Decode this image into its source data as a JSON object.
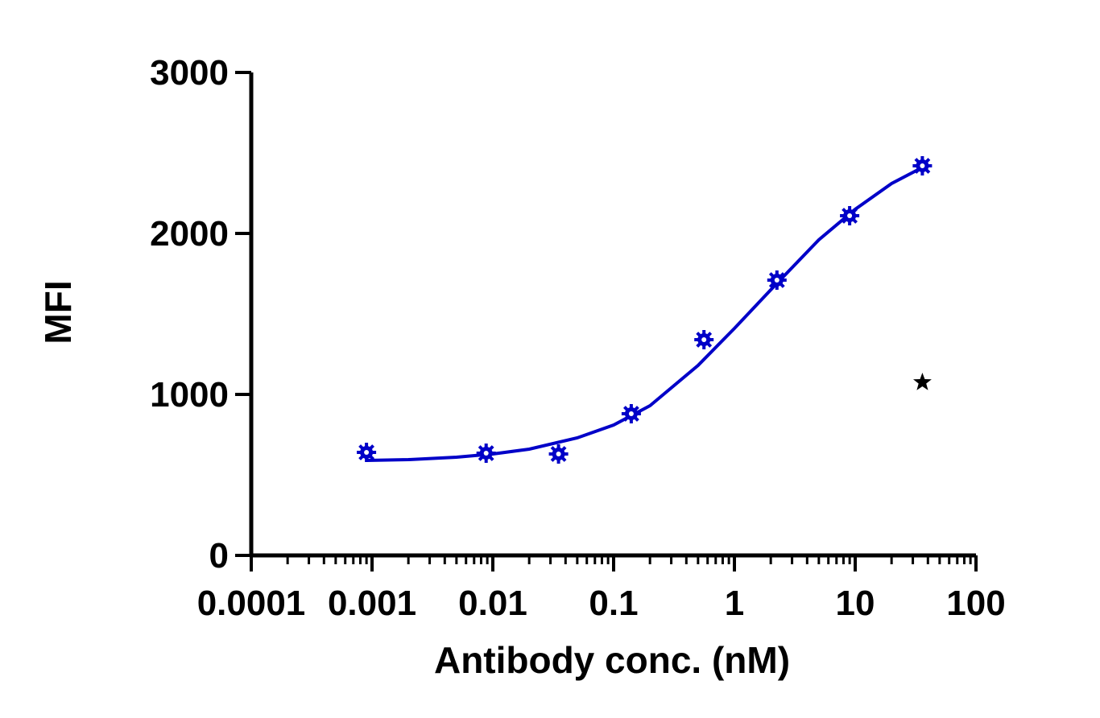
{
  "chart_data": {
    "type": "scatter",
    "title": "",
    "xlabel": "Antibody conc. (nM)",
    "ylabel": "MFI",
    "xscale": "log",
    "xlim": [
      0.0001,
      100
    ],
    "ylim": [
      0,
      3000
    ],
    "xticks": [
      0.0001,
      0.001,
      0.01,
      0.1,
      1,
      10,
      100
    ],
    "xtick_labels": [
      "0.0001",
      "0.001",
      "0.01",
      "0.1",
      "1",
      "10",
      "100"
    ],
    "yticks": [
      0,
      1000,
      2000,
      3000
    ],
    "ytick_labels": [
      "0",
      "1000",
      "2000",
      "3000"
    ],
    "grid": false,
    "legend": "none",
    "series": [
      {
        "marker": "asterisk",
        "color": "#0000C8",
        "points": [
          {
            "x": 0.0009,
            "y": 640
          },
          {
            "x": 0.0088,
            "y": 635
          },
          {
            "x": 0.035,
            "y": 630
          },
          {
            "x": 0.14,
            "y": 880
          },
          {
            "x": 0.56,
            "y": 1340
          },
          {
            "x": 2.25,
            "y": 1710
          },
          {
            "x": 9,
            "y": 2110
          },
          {
            "x": 36,
            "y": 2420
          }
        ],
        "fit": {
          "model": "4PL",
          "x_range": [
            0.0009,
            36
          ],
          "points": [
            {
              "x": 0.0009,
              "y": 590
            },
            {
              "x": 0.002,
              "y": 595
            },
            {
              "x": 0.005,
              "y": 610
            },
            {
              "x": 0.01,
              "y": 630
            },
            {
              "x": 0.02,
              "y": 660
            },
            {
              "x": 0.05,
              "y": 730
            },
            {
              "x": 0.1,
              "y": 810
            },
            {
              "x": 0.2,
              "y": 930
            },
            {
              "x": 0.5,
              "y": 1180
            },
            {
              "x": 1,
              "y": 1410
            },
            {
              "x": 2,
              "y": 1650
            },
            {
              "x": 5,
              "y": 1960
            },
            {
              "x": 10,
              "y": 2150
            },
            {
              "x": 20,
              "y": 2310
            },
            {
              "x": 36,
              "y": 2410
            }
          ]
        }
      },
      {
        "marker": "star",
        "color": "#000000",
        "points": [
          {
            "x": 36,
            "y": 1075
          }
        ]
      }
    ]
  }
}
